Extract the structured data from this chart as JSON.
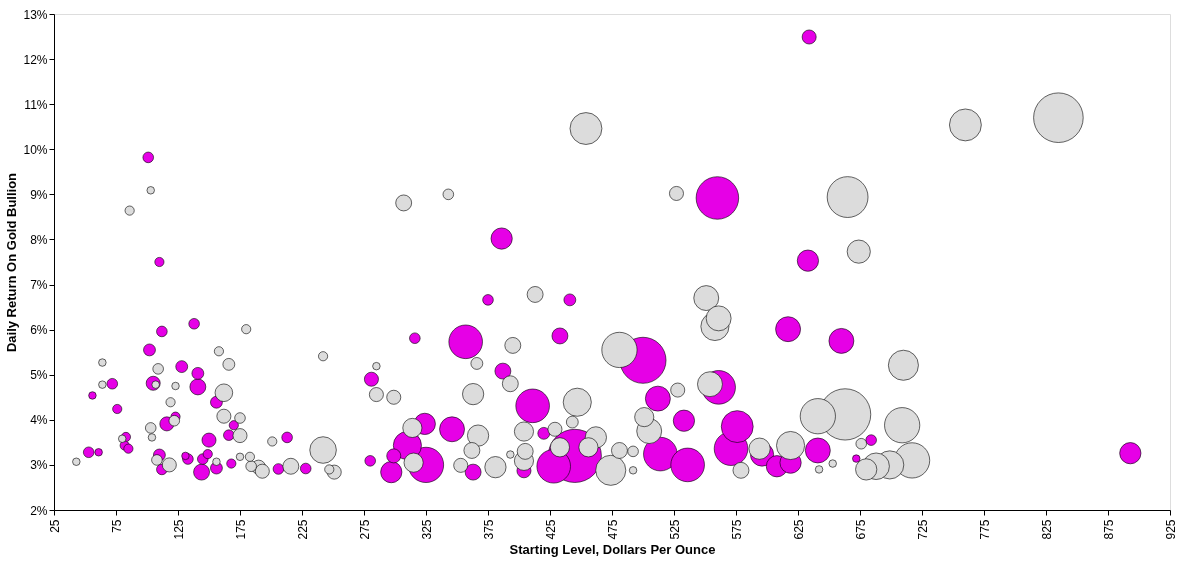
{
  "chart_data": {
    "type": "bubble",
    "xlabel": "Starting Level, Dollars Per Ounce",
    "ylabel": "Daily Return On Gold Bullion",
    "xlim": [
      25,
      925
    ],
    "xticks": [
      25,
      75,
      125,
      175,
      225,
      275,
      325,
      375,
      425,
      475,
      525,
      575,
      625,
      675,
      725,
      775,
      825,
      875,
      925
    ],
    "ylim": [
      2,
      13
    ],
    "yticks": [
      {
        "value": 2,
        "label": "2%"
      },
      {
        "value": 3,
        "label": "3%"
      },
      {
        "value": 4,
        "label": "4%"
      },
      {
        "value": 5,
        "label": "5%"
      },
      {
        "value": 6,
        "label": "6%"
      },
      {
        "value": 7,
        "label": "7%"
      },
      {
        "value": 8,
        "label": "8%"
      },
      {
        "value": 9,
        "label": "9%"
      },
      {
        "value": 10,
        "label": "10%"
      },
      {
        "value": 11,
        "label": "11%"
      },
      {
        "value": 12,
        "label": "12%"
      },
      {
        "value": 13,
        "label": "13%"
      }
    ],
    "grid": false,
    "series": [
      {
        "color": "#e600e6",
        "x": [
          101,
          110,
          138,
          112,
          102,
          128,
          141,
          72,
          105,
          141,
          56,
          156,
          76,
          116,
          123,
          170,
          166,
          83,
          82,
          85,
          150,
          213,
          53,
          61,
          110,
          112,
          131,
          133,
          145,
          149,
          144,
          156,
          168,
          206,
          228,
          560,
          386,
          375,
          441,
          316,
          357,
          433,
          500,
          281,
          387,
          411,
          512,
          561,
          533,
          576,
          420,
          324,
          346,
          310,
          299,
          325,
          280,
          297,
          363,
          404,
          428,
          445,
          514,
          536,
          571,
          634,
          633,
          617,
          660,
          641,
          596,
          608,
          619,
          684,
          672,
          893
        ],
        "values": [
          9.82,
          7.5,
          6.13,
          5.96,
          5.55,
          5.18,
          5.03,
          4.8,
          4.81,
          4.73,
          4.54,
          4.39,
          4.24,
          3.91,
          4.07,
          3.88,
          3.66,
          3.62,
          3.43,
          3.36,
          3.55,
          3.61,
          3.28,
          3.28,
          3.22,
          2.9,
          3.2,
          3.13,
          3.13,
          3.24,
          2.84,
          2.93,
          3.03,
          2.91,
          2.92,
          8.92,
          8.02,
          6.66,
          6.66,
          5.81,
          5.73,
          5.86,
          5.32,
          4.9,
          5.08,
          4.31,
          4.47,
          4.72,
          3.98,
          3.85,
          3.7,
          3.91,
          3.79,
          3.43,
          3.2,
          3.0,
          3.09,
          2.84,
          2.84,
          2.87,
          2.97,
          3.2,
          3.24,
          3.0,
          3.36,
          12.49,
          7.53,
          6.01,
          5.75,
          3.32,
          3.23,
          2.97,
          3.05,
          3.55,
          3.14,
          3.26
        ],
        "sizes": [
          0.04,
          0.03,
          0.04,
          0.04,
          0.05,
          0.05,
          0.05,
          0.04,
          0.07,
          0.09,
          0.02,
          0.05,
          0.03,
          0.07,
          0.03,
          0.03,
          0.04,
          0.03,
          0.03,
          0.03,
          0.07,
          0.04,
          0.04,
          0.02,
          0.05,
          0.04,
          0.02,
          0.04,
          0.04,
          0.03,
          0.09,
          0.05,
          0.03,
          0.04,
          0.04,
          0.64,
          0.16,
          0.04,
          0.05,
          0.04,
          0.4,
          0.09,
          0.75,
          0.07,
          0.09,
          0.4,
          0.22,
          0.4,
          0.16,
          0.36,
          0.05,
          0.16,
          0.22,
          0.28,
          0.07,
          0.44,
          0.04,
          0.16,
          0.09,
          0.07,
          0.4,
          1,
          0.4,
          0.4,
          0.4,
          0.07,
          0.16,
          0.22,
          0.22,
          0.22,
          0.19,
          0.16,
          0.16,
          0.04,
          0.02,
          0.16
        ]
      },
      {
        "color": "#dcdcdc",
        "x": [
          103,
          86,
          180,
          158,
          242,
          64,
          109,
          166,
          107,
          64,
          123,
          162,
          119,
          162,
          122,
          175,
          175,
          103,
          104,
          80,
          201,
          242,
          43,
          108,
          118,
          156,
          175,
          183,
          184,
          190,
          193,
          216,
          247,
          251,
          454,
          307,
          343,
          527,
          413,
          551,
          561,
          558,
          395,
          481,
          285,
          285,
          299,
          366,
          363,
          393,
          447,
          528,
          554,
          501,
          505,
          443,
          404,
          429,
          462,
          314,
          367,
          362,
          315,
          353,
          381,
          393,
          405,
          404,
          433,
          456,
          474,
          481,
          492,
          492,
          579,
          760,
          835,
          665,
          674,
          710,
          641,
          663,
          709,
          619,
          594,
          676,
          642,
          653,
          680,
          688,
          699,
          717
        ],
        "values": [
          9.09,
          8.64,
          6.01,
          5.52,
          5.41,
          5.27,
          5.13,
          5.23,
          4.78,
          4.78,
          4.75,
          4.6,
          4.39,
          4.08,
          3.98,
          4.04,
          3.65,
          3.82,
          3.61,
          3.58,
          3.52,
          3.33,
          3.07,
          3.11,
          3.0,
          3.07,
          3.18,
          3.18,
          2.97,
          2.95,
          2.86,
          2.97,
          2.9,
          2.84,
          10.46,
          8.81,
          9.0,
          9.02,
          6.78,
          6.7,
          6.25,
          6.07,
          5.65,
          5.55,
          5.19,
          4.56,
          4.5,
          5.25,
          4.57,
          4.8,
          4.39,
          4.66,
          4.79,
          4.06,
          3.75,
          3.95,
          3.74,
          3.79,
          3.61,
          3.82,
          3.65,
          3.32,
          3.05,
          2.99,
          2.95,
          3.23,
          3.3,
          3.09,
          3.39,
          3.39,
          2.88,
          3.32,
          3.3,
          2.88,
          2.88,
          10.54,
          10.7,
          8.94,
          7.73,
          5.21,
          4.08,
          4.12,
          3.88,
          3.43,
          3.36,
          3.47,
          2.9,
          3.03,
          2.9,
          2.97,
          3.0,
          3.1
        ],
        "sizes": [
          0.02,
          0.03,
          0.03,
          0.03,
          0.03,
          0.02,
          0.04,
          0.05,
          0.02,
          0.02,
          0.02,
          0.11,
          0.03,
          0.07,
          0.04,
          0.04,
          0.07,
          0.04,
          0.02,
          0.02,
          0.03,
          0.25,
          0.02,
          0.04,
          0.07,
          0.02,
          0.02,
          0.03,
          0.04,
          0.07,
          0.07,
          0.09,
          0.03,
          0.07,
          0.36,
          0.09,
          0.04,
          0.07,
          0.09,
          0.22,
          0.22,
          0.28,
          0.09,
          0.44,
          0.02,
          0.07,
          0.07,
          0.05,
          0.16,
          0.09,
          0.28,
          0.07,
          0.22,
          0.13,
          0.22,
          0.05,
          0.13,
          0.07,
          0.16,
          0.13,
          0.16,
          0.09,
          0.13,
          0.07,
          0.16,
          0.02,
          0.09,
          0.13,
          0.13,
          0.13,
          0.32,
          0.09,
          0.04,
          0.02,
          0.09,
          0.36,
          0.87,
          0.59,
          0.19,
          0.32,
          0.44,
          0.93,
          0.44,
          0.28,
          0.16,
          0.04,
          0.02,
          0.02,
          0.16,
          0.25,
          0.28,
          0.44
        ]
      }
    ]
  }
}
